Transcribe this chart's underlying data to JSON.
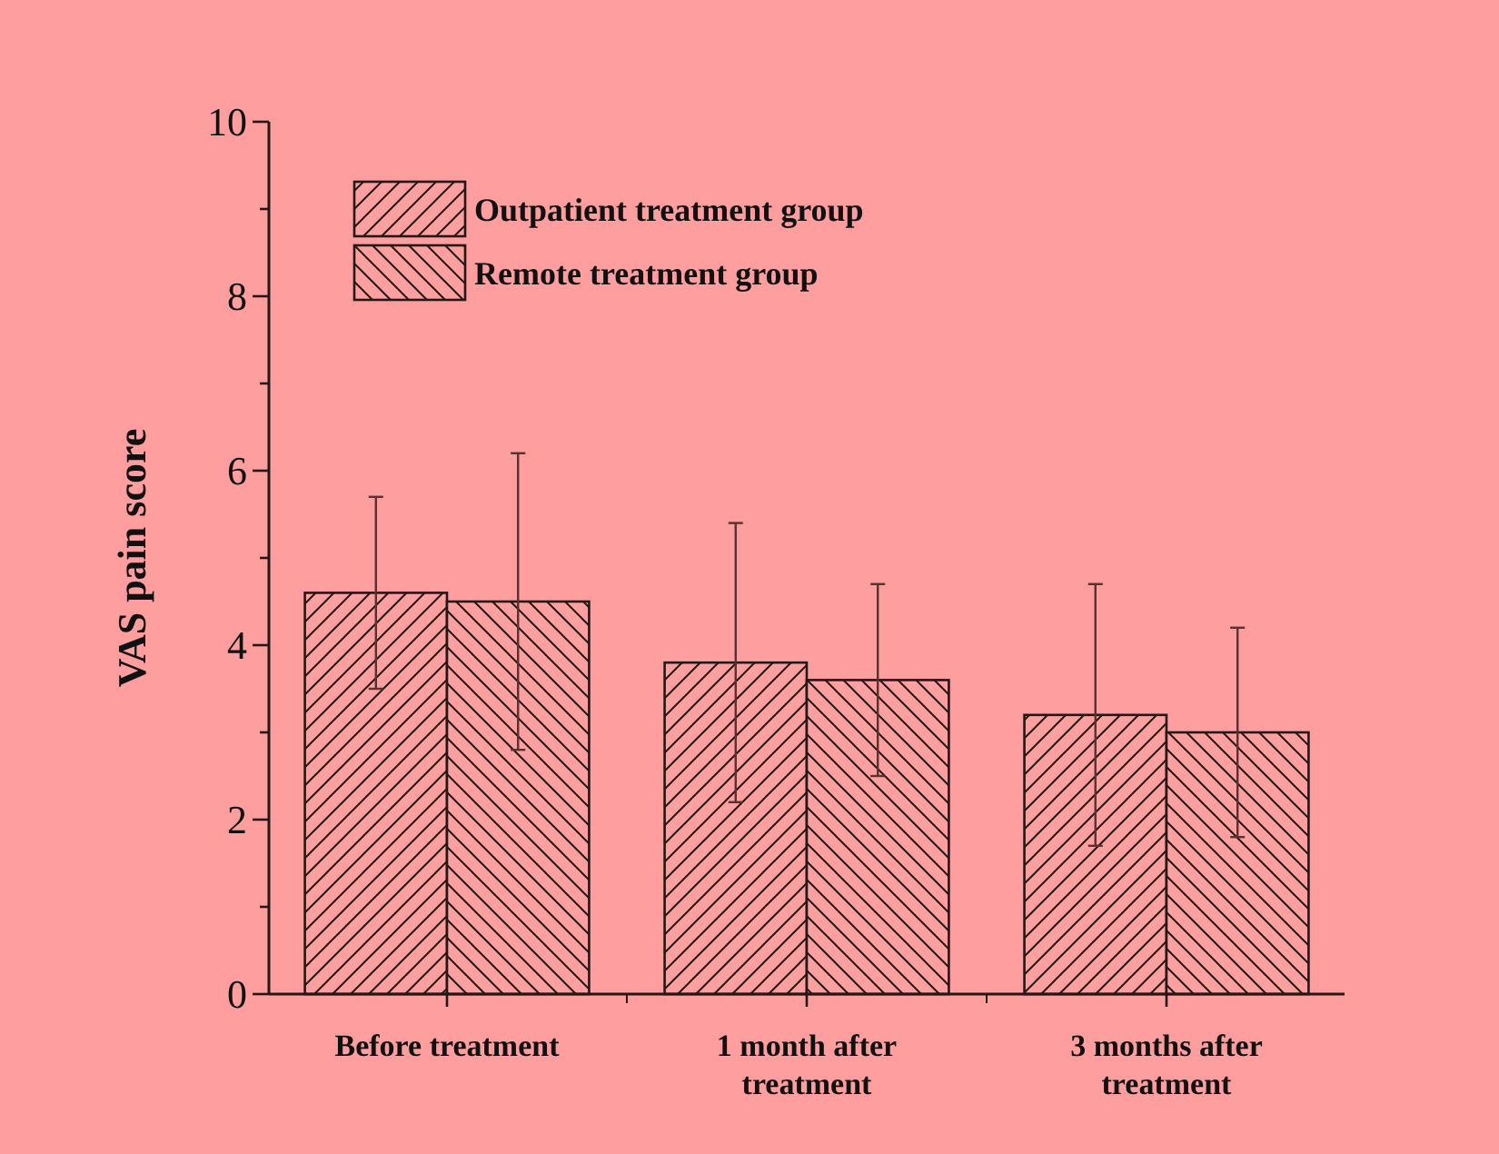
{
  "chart_data": {
    "type": "bar",
    "ylabel": "VAS pain score",
    "categories": [
      "Before treatment",
      "1 month after treatment",
      "3 months after treatment"
    ],
    "series": [
      {
        "name": "Outpatient treatment group",
        "color": "#ff9f9f",
        "values": [
          4.6,
          3.8,
          3.2
        ],
        "errors": [
          1.1,
          1.6,
          1.5
        ]
      },
      {
        "name": "Remote treatment group",
        "color": "#ff9f9f",
        "values": [
          4.5,
          3.6,
          3.0
        ],
        "errors": [
          1.7,
          1.1,
          1.2
        ]
      }
    ],
    "ylim": [
      0,
      10
    ],
    "yticks": [
      0,
      {
        "value": 1,
        "label": null
      },
      2,
      {
        "value": 3,
        "label": null
      },
      4,
      {
        "value": 5,
        "label": null
      },
      6,
      {
        "value": 7,
        "label": null
      },
      8,
      {
        "value": 9,
        "label": null
      },
      10
    ],
    "grid": false,
    "legend": "top left"
  }
}
